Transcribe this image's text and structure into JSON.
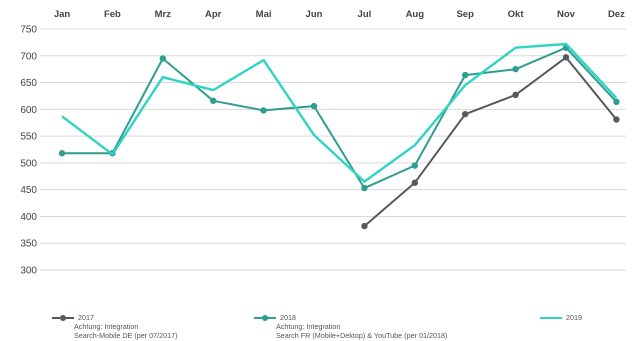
{
  "chart_data": {
    "type": "line",
    "categories": [
      "Jan",
      "Feb",
      "Mrz",
      "Apr",
      "Mai",
      "Jun",
      "Jul",
      "Aug",
      "Sep",
      "Okt",
      "Nov",
      "Dez"
    ],
    "yticks": [
      300,
      350,
      400,
      450,
      500,
      550,
      600,
      650,
      700,
      750
    ],
    "ylim": [
      300,
      750
    ],
    "grid": true,
    "legend_position": "bottom",
    "series": [
      {
        "name": "2017",
        "color": "#555a5a",
        "markers": true,
        "values": [
          null,
          null,
          null,
          null,
          null,
          null,
          382,
          463,
          591,
          627,
          697,
          581
        ],
        "note_line1": "Achtung: Integration",
        "note_line2": "Search-Mobile DE (per 07/2017)"
      },
      {
        "name": "2018",
        "color": "#2f9e8e",
        "markers": true,
        "values": [
          518,
          518,
          695,
          616,
          598,
          606,
          453,
          495,
          664,
          675,
          715,
          614
        ],
        "note_line1": "Achtung: Integration",
        "note_line2": "Search FR (Mobile+Dektop) & YouTube (per 01/2018)"
      },
      {
        "name": "2019",
        "color": "#2fd4c4",
        "markers": false,
        "values": [
          587,
          516,
          660,
          636,
          692,
          552,
          465,
          533,
          645,
          715,
          722,
          621
        ]
      }
    ]
  }
}
